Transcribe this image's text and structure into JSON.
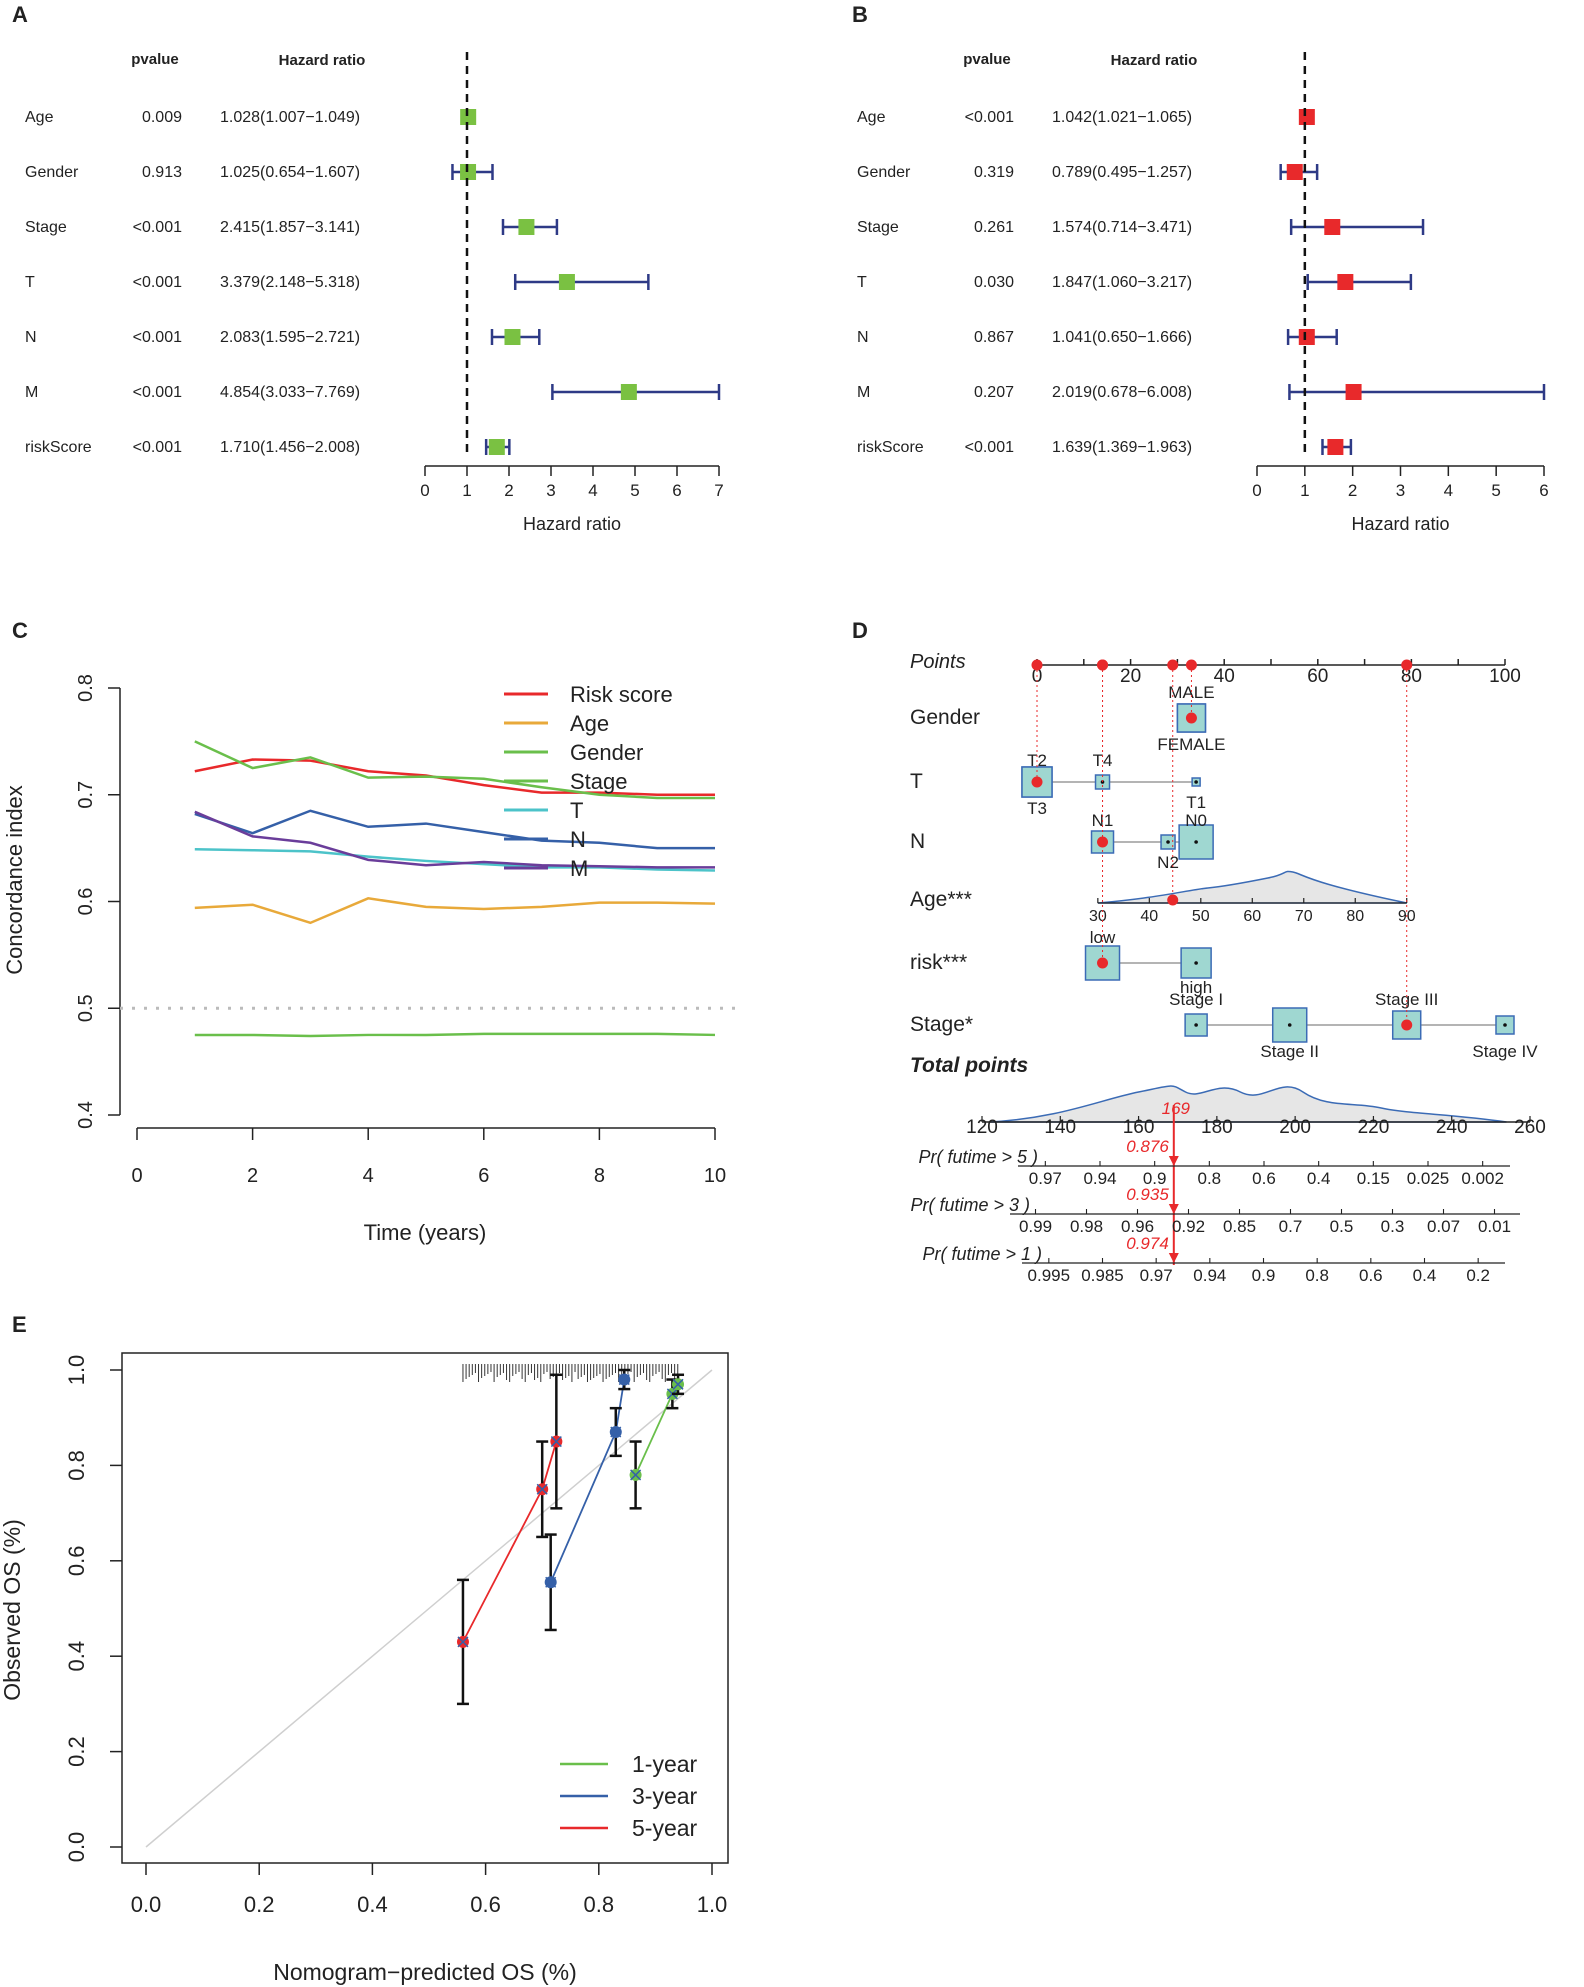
{
  "colors": {
    "green_box": "#7ac142",
    "red_box": "#e8292b",
    "ci_line": "#2e3a86",
    "axis": "#222222",
    "nomo_fill": "#9fd7d1",
    "nomo_edge": "#3b6bb5",
    "nomo_dot": "#e8292b",
    "nomo_guide": "#e8292b",
    "grey_ref": "#bbbbbb"
  },
  "chart_data": [
    {
      "panel": "A",
      "type": "forest",
      "col_pvalue": "pvalue",
      "col_hr": "Hazard ratio",
      "xlabel": "Hazard ratio",
      "xlim": [
        0,
        7
      ],
      "ref_line": 1,
      "ticks": [
        "0",
        "1",
        "2",
        "3",
        "4",
        "5",
        "6",
        "7"
      ],
      "rows": [
        {
          "label": "Age",
          "pvalue": "0.009",
          "hr_text": "1.028(1.007−1.049)",
          "hr": 1.028,
          "lo": 1.007,
          "hi": 1.049
        },
        {
          "label": "Gender",
          "pvalue": "0.913",
          "hr_text": "1.025(0.654−1.607)",
          "hr": 1.025,
          "lo": 0.654,
          "hi": 1.607
        },
        {
          "label": "Stage",
          "pvalue": "<0.001",
          "hr_text": "2.415(1.857−3.141)",
          "hr": 2.415,
          "lo": 1.857,
          "hi": 3.141
        },
        {
          "label": "T",
          "pvalue": "<0.001",
          "hr_text": "3.379(2.148−5.318)",
          "hr": 3.379,
          "lo": 2.148,
          "hi": 5.318
        },
        {
          "label": "N",
          "pvalue": "<0.001",
          "hr_text": "2.083(1.595−2.721)",
          "hr": 2.083,
          "lo": 1.595,
          "hi": 2.721
        },
        {
          "label": "M",
          "pvalue": "<0.001",
          "hr_text": "4.854(3.033−7.769)",
          "hr": 4.854,
          "lo": 3.033,
          "hi": 7.769
        },
        {
          "label": "riskScore",
          "pvalue": "<0.001",
          "hr_text": "1.710(1.456−2.008)",
          "hr": 1.71,
          "lo": 1.456,
          "hi": 2.008
        }
      ]
    },
    {
      "panel": "B",
      "type": "forest",
      "col_pvalue": "pvalue",
      "col_hr": "Hazard ratio",
      "xlabel": "Hazard ratio",
      "xlim": [
        0,
        6
      ],
      "ref_line": 1,
      "ticks": [
        "0",
        "1",
        "2",
        "3",
        "4",
        "5",
        "6"
      ],
      "rows": [
        {
          "label": "Age",
          "pvalue": "<0.001",
          "hr_text": "1.042(1.021−1.065)",
          "hr": 1.042,
          "lo": 1.021,
          "hi": 1.065
        },
        {
          "label": "Gender",
          "pvalue": "0.319",
          "hr_text": "0.789(0.495−1.257)",
          "hr": 0.789,
          "lo": 0.495,
          "hi": 1.257
        },
        {
          "label": "Stage",
          "pvalue": "0.261",
          "hr_text": "1.574(0.714−3.471)",
          "hr": 1.574,
          "lo": 0.714,
          "hi": 3.471
        },
        {
          "label": "T",
          "pvalue": "0.030",
          "hr_text": "1.847(1.060−3.217)",
          "hr": 1.847,
          "lo": 1.06,
          "hi": 3.217
        },
        {
          "label": "N",
          "pvalue": "0.867",
          "hr_text": "1.041(0.650−1.666)",
          "hr": 1.041,
          "lo": 0.65,
          "hi": 1.666
        },
        {
          "label": "M",
          "pvalue": "0.207",
          "hr_text": "2.019(0.678−6.008)",
          "hr": 2.019,
          "lo": 0.678,
          "hi": 6.008
        },
        {
          "label": "riskScore",
          "pvalue": "<0.001",
          "hr_text": "1.639(1.369−1.963)",
          "hr": 1.639,
          "lo": 1.369,
          "hi": 1.963
        }
      ]
    },
    {
      "panel": "C",
      "type": "line",
      "xlabel": "Time (years)",
      "ylabel": "Concordance index",
      "xlim": [
        0,
        10
      ],
      "ylim": [
        0.4,
        0.8
      ],
      "xticks": [
        "0",
        "2",
        "4",
        "6",
        "8",
        "10"
      ],
      "yticks": [
        "0.4",
        "0.5",
        "0.6",
        "0.7",
        "0.8"
      ],
      "ref_line": 0.5,
      "legend_position": "top-right",
      "x": [
        1,
        2,
        3,
        4,
        5,
        6,
        7,
        8,
        9,
        10
      ],
      "series": [
        {
          "name": "Risk score",
          "color": "#e8292b",
          "values": [
            0.722,
            0.733,
            0.732,
            0.722,
            0.718,
            0.709,
            0.702,
            0.702,
            0.7,
            0.7
          ]
        },
        {
          "name": "Age",
          "color": "#e8a93a",
          "values": [
            0.594,
            0.597,
            0.58,
            0.603,
            0.595,
            0.593,
            0.595,
            0.599,
            0.599,
            0.598
          ]
        },
        {
          "name": "Gender",
          "color": "#6abf4b",
          "values": [
            0.475,
            0.475,
            0.474,
            0.475,
            0.475,
            0.476,
            0.476,
            0.476,
            0.476,
            0.475
          ]
        },
        {
          "name": "Stage",
          "color": "#6abf4b",
          "values": [
            0.75,
            0.725,
            0.735,
            0.716,
            0.717,
            0.715,
            0.707,
            0.7,
            0.697,
            0.697
          ]
        },
        {
          "name": "T",
          "color": "#4cc3c9",
          "values": [
            0.649,
            0.648,
            0.647,
            0.642,
            0.638,
            0.635,
            0.632,
            0.632,
            0.63,
            0.629
          ]
        },
        {
          "name": "N",
          "color": "#3560a8",
          "values": [
            0.682,
            0.664,
            0.685,
            0.67,
            0.673,
            0.665,
            0.657,
            0.655,
            0.65,
            0.65
          ]
        },
        {
          "name": "M",
          "color": "#6a3d9a",
          "values": [
            0.684,
            0.661,
            0.655,
            0.639,
            0.634,
            0.637,
            0.634,
            0.633,
            0.632,
            0.632
          ]
        }
      ]
    },
    {
      "panel": "D",
      "type": "nomogram",
      "points_label": "Points",
      "points_ticks": [
        "0",
        "20",
        "40",
        "60",
        "80",
        "100"
      ],
      "variables": [
        {
          "label": "Gender",
          "levels": [
            {
              "name": "MALE",
              "pts": 33
            },
            {
              "name": "FEMALE",
              "pts": 33
            }
          ],
          "selected_pts": 33
        },
        {
          "label": "T",
          "levels": [
            {
              "name": "T2",
              "pts": 0
            },
            {
              "name": "T3",
              "pts": 0
            },
            {
              "name": "T4",
              "pts": 14
            },
            {
              "name": "T1",
              "pts": 34
            }
          ],
          "selected_pts": 0
        },
        {
          "label": "N",
          "levels": [
            {
              "name": "N1",
              "pts": 14
            },
            {
              "name": "N2",
              "pts": 28
            },
            {
              "name": "N0",
              "pts": 34
            }
          ],
          "selected_pts": 14
        },
        {
          "label": "Age***",
          "axis": [
            "30",
            "40",
            "50",
            "60",
            "70",
            "80",
            "90"
          ],
          "selected_pts": 29
        },
        {
          "label": "risk***",
          "levels": [
            {
              "name": "low",
              "pts": 14
            },
            {
              "name": "high",
              "pts": 34
            }
          ],
          "selected_pts": 14
        },
        {
          "label": "Stage*",
          "levels": [
            {
              "name": "Stage I",
              "pts": 34
            },
            {
              "name": "Stage II",
              "pts": 54
            },
            {
              "name": "Stage III",
              "pts": 79
            },
            {
              "name": "Stage IV",
              "pts": 100
            }
          ],
          "selected_pts": 79
        }
      ],
      "total_label": "Total points",
      "total_ticks": [
        "120",
        "140",
        "160",
        "180",
        "200",
        "220",
        "240",
        "260"
      ],
      "total_value": "169",
      "prob_rows": [
        {
          "label": "Pr( futime > 5 )",
          "value": "0.876",
          "ticks": [
            "0.97",
            "0.94",
            "0.9",
            "0.8",
            "0.6",
            "0.4",
            "0.15",
            "0.025",
            "0.002"
          ]
        },
        {
          "label": "Pr( futime > 3 )",
          "value": "0.935",
          "ticks": [
            "0.99",
            "0.98",
            "0.96",
            "0.92",
            "0.85",
            "0.7",
            "0.5",
            "0.3",
            "0.07",
            "0.01"
          ]
        },
        {
          "label": "Pr( futime > 1 )",
          "value": "0.974",
          "ticks": [
            "0.995",
            "0.985",
            "0.97",
            "0.94",
            "0.9",
            "0.8",
            "0.6",
            "0.4",
            "0.2"
          ]
        }
      ]
    },
    {
      "panel": "E",
      "type": "calibration",
      "xlabel": "Nomogram−predicted OS (%)",
      "ylabel": "Observed OS (%)",
      "xlim": [
        0,
        1
      ],
      "ylim": [
        0,
        1
      ],
      "xticks": [
        "0.0",
        "0.2",
        "0.4",
        "0.6",
        "0.8",
        "1.0"
      ],
      "yticks": [
        "0.0",
        "0.2",
        "0.4",
        "0.6",
        "0.8",
        "1.0"
      ],
      "legend_position": "bottom-right",
      "series": [
        {
          "name": "1-year",
          "color": "#6abf4b",
          "x": [
            0.865,
            0.93,
            0.94
          ],
          "y": [
            0.78,
            0.95,
            0.97
          ],
          "err": [
            0.07,
            0.03,
            0.02
          ]
        },
        {
          "name": "3-year",
          "color": "#3560a8",
          "x": [
            0.715,
            0.83,
            0.845
          ],
          "y": [
            0.555,
            0.87,
            0.98
          ],
          "err": [
            0.1,
            0.05,
            0.02
          ]
        },
        {
          "name": "5-year",
          "color": "#e8292b",
          "x": [
            0.56,
            0.7,
            0.725
          ],
          "y": [
            0.43,
            0.75,
            0.85
          ],
          "err": [
            0.13,
            0.1,
            0.14
          ]
        }
      ]
    }
  ],
  "panel_letters": [
    "A",
    "B",
    "C",
    "D",
    "E"
  ]
}
